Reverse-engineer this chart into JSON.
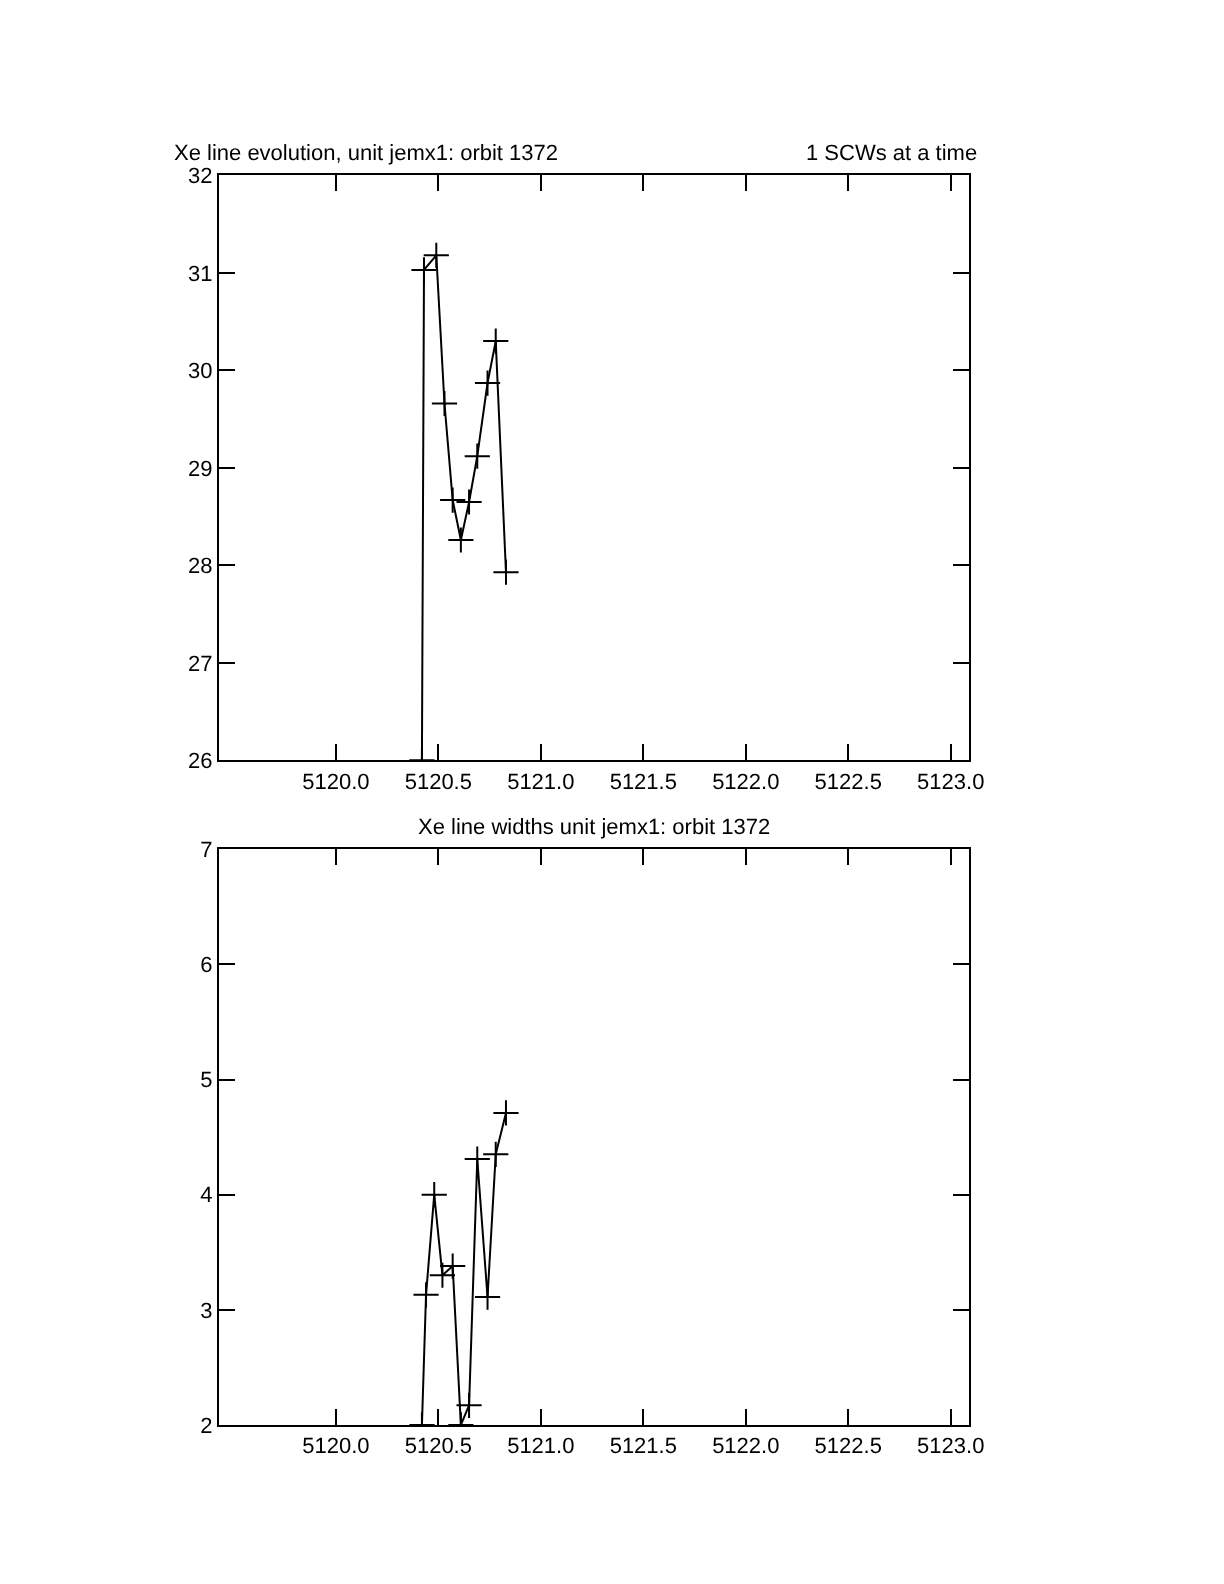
{
  "chart_data": [
    {
      "type": "line",
      "title": "Xe line evolution, unit jemx1: orbit 1372",
      "annotations": [
        "1 SCWs at a time"
      ],
      "marker": "cross",
      "x": [
        5120.42,
        5120.43,
        5120.49,
        5120.53,
        5120.57,
        5120.61,
        5120.65,
        5120.69,
        5120.74,
        5120.78,
        5120.83
      ],
      "series": [
        {
          "color": "#000000",
          "values": [
            26,
            31.03,
            31.18,
            29.66,
            28.67,
            28.26,
            28.65,
            29.12,
            29.87,
            30.3,
            27.93
          ]
        }
      ],
      "xlim": [
        5119.43,
        5123.09
      ],
      "xticks": [
        {
          "value": 5120,
          "label": "5120.0"
        },
        {
          "value": 5120.5,
          "label": "5120.5"
        },
        {
          "value": 5121,
          "label": "5121.0"
        },
        {
          "value": 5121.5,
          "label": "5121.5"
        },
        {
          "value": 5122,
          "label": "5122.0"
        },
        {
          "value": 5122.5,
          "label": "5122.5"
        },
        {
          "value": 5123,
          "label": "5123.0"
        }
      ],
      "ylim": [
        26,
        32
      ],
      "yticks": [
        26,
        27,
        28,
        29,
        30,
        31,
        32
      ]
    },
    {
      "type": "line",
      "title": "Xe line widths unit jemx1: orbit 1372",
      "marker": "cross",
      "x": [
        5120.42,
        5120.44,
        5120.48,
        5120.52,
        5120.57,
        5120.61,
        5120.65,
        5120.69,
        5120.74,
        5120.78,
        5120.83
      ],
      "series": [
        {
          "color": "#000000",
          "values": [
            2,
            3.13,
            4.0,
            3.3,
            3.38,
            2,
            2.17,
            4.31,
            3.11,
            4.35,
            4.71
          ]
        }
      ],
      "xlim": [
        5119.43,
        5123.09
      ],
      "xticks": [
        {
          "value": 5120,
          "label": "5120.0"
        },
        {
          "value": 5120.5,
          "label": "5120.5"
        },
        {
          "value": 5121,
          "label": "5121.0"
        },
        {
          "value": 5121.5,
          "label": "5121.5"
        },
        {
          "value": 5122,
          "label": "5122.0"
        },
        {
          "value": 5122.5,
          "label": "5122.5"
        },
        {
          "value": 5123,
          "label": "5123.0"
        }
      ],
      "ylim": [
        2,
        7
      ],
      "yticks": [
        2,
        3,
        4,
        5,
        6,
        7
      ]
    }
  ]
}
